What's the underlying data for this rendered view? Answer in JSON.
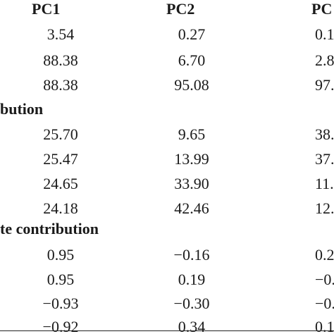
{
  "table": {
    "columns": [
      "PC1",
      "PC2",
      "PC"
    ],
    "rows_top": [
      [
        "3.54",
        "0.27",
        "0.1"
      ],
      [
        "88.38",
        "6.70",
        "2.8"
      ],
      [
        "88.38",
        "95.08",
        "97."
      ]
    ],
    "section_contribution": {
      "label": "bution",
      "rows": [
        [
          "25.70",
          "9.65",
          "38."
        ],
        [
          "25.47",
          "13.99",
          "37."
        ],
        [
          "24.65",
          "33.90",
          "11."
        ],
        [
          "24.18",
          "42.46",
          "12."
        ]
      ]
    },
    "section_te_contribution": {
      "label": "te contribution",
      "rows": [
        [
          "0.95",
          "−0.16",
          "0.2"
        ],
        [
          "0.95",
          "0.19",
          "−0."
        ],
        [
          "−0.93",
          "−0.30",
          "−0."
        ],
        [
          "−0.92",
          "0.34",
          "0.1"
        ]
      ]
    }
  }
}
